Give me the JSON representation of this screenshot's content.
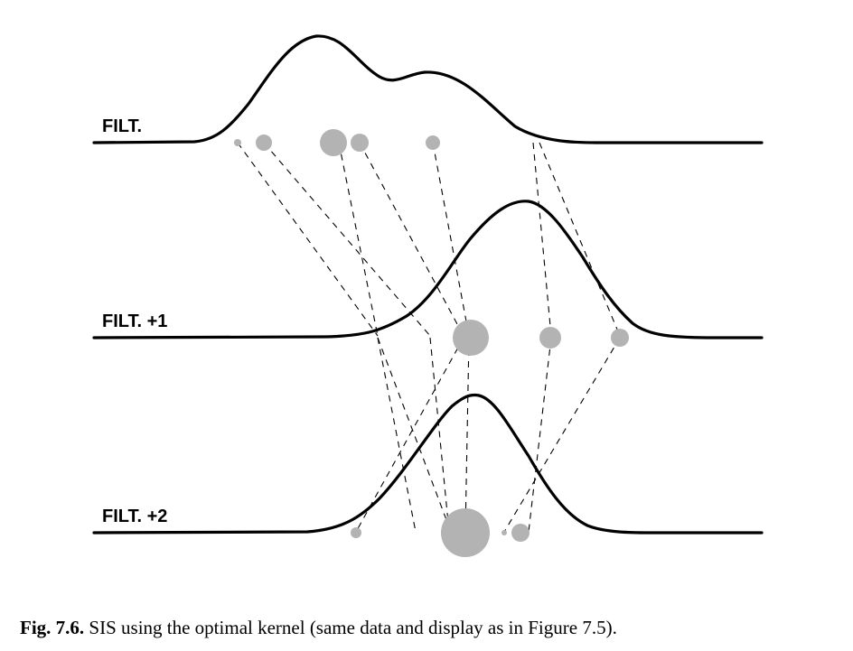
{
  "rows": [
    {
      "label": "FILT."
    },
    {
      "label": "FILT. +1"
    },
    {
      "label": "FILT. +2"
    }
  ],
  "caption": {
    "number": "Fig. 7.6.",
    "text": "SIS using the optimal kernel (same data and display as in Figure 7.5)."
  },
  "colors": {
    "particle": "#b3b3b3",
    "curve": "#000000"
  }
}
